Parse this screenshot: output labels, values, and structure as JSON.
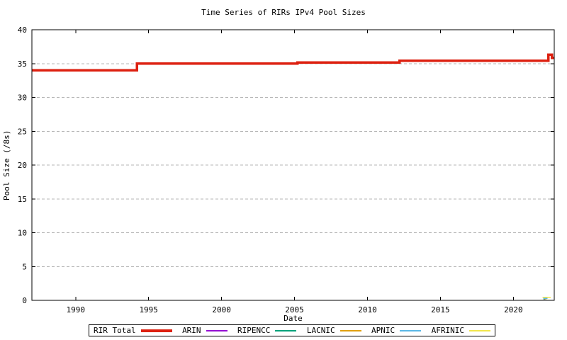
{
  "chart_data": {
    "type": "line",
    "title": "Time Series of RIRs IPv4 Pool Sizes",
    "xlabel": "Date",
    "ylabel": "Pool Size (/8s)",
    "xlim": [
      1987,
      2022.8
    ],
    "ylim": [
      0,
      40
    ],
    "xticks": [
      1990,
      1995,
      2000,
      2005,
      2010,
      2015,
      2020
    ],
    "yticks": [
      0,
      5,
      10,
      15,
      20,
      25,
      30,
      35,
      40
    ],
    "grid": "horizontal-dashed",
    "legend_position": "bottom-outside-boxed",
    "series": [
      {
        "name": "RIR Total",
        "color": "#dd2010",
        "width": 3.5,
        "points": [
          [
            1987,
            34
          ],
          [
            1994.2,
            34
          ],
          [
            1994.2,
            35
          ],
          [
            2005.2,
            35
          ],
          [
            2005.2,
            35.17
          ],
          [
            2012.2,
            35.17
          ],
          [
            2012.2,
            35.4
          ],
          [
            2022.4,
            35.4
          ],
          [
            2022.4,
            36.3
          ],
          [
            2022.65,
            36.3
          ],
          [
            2022.65,
            35.85
          ],
          [
            2022.8,
            35.85
          ]
        ]
      },
      {
        "name": "ARIN",
        "color": "#9410d3",
        "width": 1.5,
        "points": [
          [
            2022.05,
            0.25
          ],
          [
            2022.2,
            0.25
          ]
        ]
      },
      {
        "name": "RIPENCC",
        "color": "#00a27a",
        "width": 1.5,
        "points": [
          [
            2022.08,
            0.2
          ],
          [
            2022.2,
            0.2
          ]
        ]
      },
      {
        "name": "LACNIC",
        "color": "#e0a010",
        "width": 1.5,
        "points": [
          [
            2022.1,
            0.24
          ],
          [
            2022.3,
            0.24
          ]
        ]
      },
      {
        "name": "APNIC",
        "color": "#5cb8e6",
        "width": 1.5,
        "points": [
          [
            2022.05,
            0.3
          ],
          [
            2022.35,
            0.3
          ]
        ]
      },
      {
        "name": "AFRINIC",
        "color": "#f2e64c",
        "width": 1.5,
        "points": [
          [
            2022.0,
            0.47
          ],
          [
            2022.55,
            0.47
          ]
        ]
      }
    ],
    "colors": {
      "background": "#ffffff",
      "axis": "#000000",
      "grid": "#b4b4b4",
      "text": "#000000"
    }
  }
}
